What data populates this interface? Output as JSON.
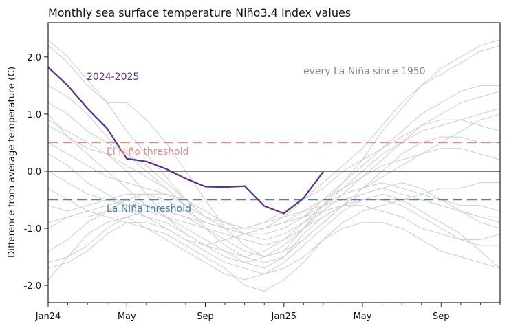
{
  "chart_data": {
    "type": "line",
    "title": "Monthly sea surface temperature Niño3.4 Index values",
    "ylabel": "Difference from average temperature (C)",
    "xlabel": "",
    "ylim": [
      -2.3,
      2.6
    ],
    "x_months": 24,
    "x_ticks": [
      {
        "month": 0,
        "label": "Jan24"
      },
      {
        "month": 4,
        "label": "May"
      },
      {
        "month": 8,
        "label": "Sep"
      },
      {
        "month": 12,
        "label": "Jan25"
      },
      {
        "month": 16,
        "label": "May"
      },
      {
        "month": 20,
        "label": "Sep"
      }
    ],
    "y_ticks": [
      {
        "value": 2.0,
        "label": "2.0"
      },
      {
        "value": 1.0,
        "label": "1.0"
      },
      {
        "value": 0.0,
        "label": "0.0"
      },
      {
        "value": -1.0,
        "label": "-1.0"
      },
      {
        "value": -2.0,
        "label": "-2.0"
      }
    ],
    "zero_line": 0.0,
    "thresholds": [
      {
        "name": "El Niño threshold",
        "value": 0.5,
        "color": "#e88a8a"
      },
      {
        "name": "La Niña threshold",
        "value": -0.5,
        "color": "#4a7fb0"
      }
    ],
    "highlight": {
      "name": "2024-2025",
      "color": "#5b2d8e",
      "values": [
        1.82,
        1.5,
        1.1,
        0.75,
        0.22,
        0.17,
        0.04,
        -0.13,
        -0.27,
        -0.28,
        -0.26,
        -0.61,
        -0.74,
        -0.47,
        -0.01
      ]
    },
    "background_label": "every La Niña since 1950",
    "background_color": "#cccccc",
    "background_series": [
      [
        2.3,
        2.0,
        1.6,
        1.2,
        0.7,
        0.3,
        -0.1,
        -0.5,
        -0.8,
        -1.0,
        -1.1,
        -1.0,
        -0.8,
        -0.5,
        -0.2,
        0.1,
        0.4,
        0.8,
        1.2,
        1.5,
        1.7,
        1.9,
        2.1,
        2.2
      ],
      [
        2.2,
        1.9,
        1.5,
        1.2,
        1.2,
        0.9,
        0.5,
        0.0,
        -0.5,
        -1.0,
        -1.3,
        -1.5,
        -1.4,
        -1.0,
        -0.6,
        -0.2,
        0.2,
        0.7,
        1.1,
        1.5,
        1.8,
        2.0,
        2.2,
        2.3
      ],
      [
        1.0,
        0.6,
        0.3,
        0.0,
        -0.3,
        -0.6,
        -0.8,
        -1.0,
        -1.2,
        -1.4,
        -1.6,
        -1.7,
        -1.5,
        -1.1,
        -0.8,
        -0.6,
        -0.5,
        -0.5,
        -0.6,
        -0.8,
        -1.0,
        -1.2,
        -1.3,
        -1.3
      ],
      [
        0.8,
        0.6,
        0.4,
        0.3,
        0.0,
        -0.4,
        -0.8,
        -1.1,
        -1.3,
        -1.5,
        -1.6,
        -1.5,
        -1.3,
        -1.0,
        -0.7,
        -0.4,
        -0.1,
        0.2,
        0.5,
        0.8,
        1.0,
        1.2,
        1.3,
        1.4
      ],
      [
        -0.6,
        -0.7,
        -0.6,
        -0.5,
        -0.4,
        -0.4,
        -0.5,
        -0.7,
        -0.9,
        -1.0,
        -1.0,
        -0.9,
        -0.8,
        -0.7,
        -0.6,
        -0.5,
        -0.4,
        -0.3,
        -0.4,
        -0.5,
        -0.6,
        -0.7,
        -0.8,
        -0.9
      ],
      [
        -1.6,
        -1.5,
        -1.3,
        -1.0,
        -0.8,
        -0.7,
        -0.8,
        -0.9,
        -1.0,
        -1.1,
        -1.2,
        -1.3,
        -1.2,
        -1.0,
        -0.8,
        -0.6,
        -0.4,
        -0.3,
        -0.2,
        -0.3,
        -0.5,
        -0.7,
        -0.9,
        -1.0
      ],
      [
        -1.9,
        -1.5,
        -1.1,
        -0.9,
        -0.8,
        -1.0,
        -1.2,
        -1.4,
        -1.6,
        -1.8,
        -1.9,
        -1.8,
        -1.6,
        -1.3,
        -1.0,
        -0.7,
        -0.5,
        -0.4,
        -0.5,
        -0.7,
        -0.9,
        -1.1,
        -1.4,
        -1.7
      ],
      [
        0.5,
        0.3,
        0.1,
        -0.1,
        -0.2,
        -0.3,
        -0.4,
        -0.6,
        -0.8,
        -0.9,
        -1.0,
        -1.0,
        -0.9,
        -0.7,
        -0.5,
        -0.3,
        0.0,
        0.3,
        0.5,
        0.7,
        0.8,
        0.9,
        1.0,
        1.1
      ],
      [
        -0.3,
        -0.5,
        -0.7,
        -0.8,
        -0.9,
        -1.0,
        -1.1,
        -1.3,
        -1.5,
        -1.7,
        -2.0,
        -2.1,
        -1.9,
        -1.6,
        -1.2,
        -0.9,
        -0.7,
        -0.6,
        -0.5,
        -0.5,
        -0.6,
        -0.7,
        -0.8,
        -0.8
      ],
      [
        -1.0,
        -0.8,
        -0.7,
        -0.6,
        -0.5,
        -0.6,
        -0.7,
        -0.8,
        -1.0,
        -1.2,
        -1.4,
        -1.5,
        -1.4,
        -1.2,
        -0.9,
        -0.6,
        -0.3,
        0.0,
        0.3,
        0.5,
        0.6,
        0.6,
        0.5,
        0.5
      ],
      [
        1.2,
        1.0,
        0.7,
        0.5,
        0.3,
        0.1,
        -0.2,
        -0.5,
        -0.7,
        -0.9,
        -1.0,
        -1.0,
        -0.9,
        -0.8,
        -0.6,
        -0.4,
        -0.3,
        -0.2,
        -0.3,
        -0.4,
        -0.5,
        -0.6,
        -0.6,
        -0.7
      ],
      [
        0.0,
        -0.2,
        -0.4,
        -0.5,
        -0.6,
        -0.6,
        -0.7,
        -0.8,
        -0.9,
        -1.0,
        -1.0,
        -0.9,
        -0.7,
        -0.5,
        -0.3,
        0.0,
        0.2,
        0.4,
        0.6,
        0.8,
        0.9,
        0.9,
        0.8,
        0.7
      ],
      [
        -1.4,
        -1.2,
        -0.9,
        -0.7,
        -0.5,
        -0.4,
        -0.4,
        -0.5,
        -0.7,
        -0.9,
        -1.1,
        -1.2,
        -1.1,
        -0.9,
        -0.7,
        -0.6,
        -0.6,
        -0.7,
        -0.8,
        -1.0,
        -1.1,
        -1.2,
        -1.2,
        -1.1
      ],
      [
        0.9,
        0.7,
        0.5,
        0.3,
        0.1,
        -0.1,
        -0.3,
        -0.6,
        -1.0,
        -1.3,
        -1.5,
        -1.6,
        -1.5,
        -1.2,
        -0.9,
        -0.6,
        -0.3,
        -0.1,
        0.1,
        0.3,
        0.4,
        0.4,
        0.3,
        0.2
      ],
      [
        -0.9,
        -0.8,
        -0.8,
        -0.7,
        -0.7,
        -0.8,
        -1.0,
        -1.2,
        -1.3,
        -1.2,
        -1.1,
        -1.0,
        -0.9,
        -0.8,
        -0.7,
        -0.6,
        -0.5,
        -0.5,
        -0.5,
        -0.4,
        -0.3,
        -0.3,
        -0.2,
        -0.2
      ],
      [
        0.3,
        0.1,
        -0.2,
        -0.4,
        -0.6,
        -0.8,
        -0.9,
        -1.1,
        -1.3,
        -1.4,
        -1.5,
        -1.4,
        -1.2,
        -0.9,
        -0.6,
        -0.3,
        -0.1,
        0.1,
        0.2,
        0.3,
        0.5,
        0.7,
        0.9,
        1.0
      ],
      [
        -1.7,
        -1.6,
        -1.4,
        -1.1,
        -0.9,
        -0.9,
        -1.0,
        -1.2,
        -1.4,
        -1.6,
        -1.7,
        -1.8,
        -1.7,
        -1.5,
        -1.2,
        -1.0,
        -0.9,
        -0.9,
        -1.0,
        -1.2,
        -1.4,
        -1.5,
        -1.6,
        -1.7
      ],
      [
        1.5,
        1.3,
        1.0,
        0.6,
        0.3,
        0.0,
        -0.3,
        -0.6,
        -0.8,
        -1.0,
        -1.1,
        -1.1,
        -1.0,
        -0.8,
        -0.5,
        -0.2,
        0.1,
        0.4,
        0.7,
        1.0,
        1.2,
        1.4,
        1.5,
        1.5
      ]
    ]
  }
}
